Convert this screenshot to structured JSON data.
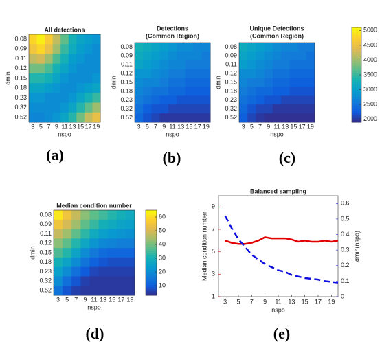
{
  "chart_data": [
    {
      "type": "heatmap",
      "title": "All detections",
      "caption": "(a)",
      "xlabel": "nspo",
      "ylabel": "dmin",
      "colormap": "parula",
      "x": [
        3,
        5,
        7,
        9,
        11,
        13,
        15,
        17,
        19
      ],
      "y": [
        0.08,
        0.09,
        0.11,
        0.12,
        0.15,
        0.18,
        0.23,
        0.32,
        0.52
      ],
      "clim": [
        1900,
        5100
      ],
      "values": [
        [
          4800,
          5000,
          4700,
          4200,
          3700,
          3300,
          3100,
          3000,
          2900
        ],
        [
          4600,
          4800,
          4500,
          4000,
          3500,
          3200,
          3000,
          2900,
          2800
        ],
        [
          4200,
          4300,
          4000,
          3600,
          3300,
          3000,
          2900,
          2800,
          2800
        ],
        [
          3800,
          3800,
          3600,
          3300,
          3100,
          2900,
          2800,
          2800,
          2800
        ],
        [
          3400,
          3400,
          3300,
          3100,
          2900,
          2800,
          2800,
          2800,
          2900
        ],
        [
          3100,
          3100,
          3000,
          2900,
          2800,
          2800,
          2900,
          3000,
          3100
        ],
        [
          2900,
          2900,
          2800,
          2800,
          2800,
          2900,
          3100,
          3300,
          3500
        ],
        [
          2800,
          2800,
          2800,
          2800,
          2900,
          3100,
          3400,
          3700,
          4000
        ],
        [
          2700,
          2700,
          2800,
          2900,
          3100,
          3400,
          3800,
          4200,
          4500
        ]
      ]
    },
    {
      "type": "heatmap",
      "title": "Detections",
      "subtitle": "(Common Region)",
      "caption": "(b)",
      "xlabel": "nspo",
      "ylabel": "dmin",
      "colormap": "parula",
      "x": [
        3,
        5,
        7,
        9,
        11,
        13,
        15,
        17,
        19
      ],
      "y": [
        0.08,
        0.09,
        0.11,
        0.12,
        0.15,
        0.18,
        0.23,
        0.32,
        0.52
      ],
      "clim": [
        1900,
        5100
      ],
      "values": [
        [
          3300,
          3200,
          3100,
          3000,
          2900,
          2800,
          2800,
          2700,
          2700
        ],
        [
          3200,
          3100,
          3000,
          2900,
          2800,
          2700,
          2700,
          2700,
          2600
        ],
        [
          3100,
          3000,
          2900,
          2800,
          2700,
          2700,
          2600,
          2600,
          2600
        ],
        [
          2900,
          2900,
          2800,
          2700,
          2600,
          2600,
          2500,
          2500,
          2500
        ],
        [
          2800,
          2700,
          2700,
          2600,
          2500,
          2500,
          2400,
          2400,
          2400
        ],
        [
          2700,
          2600,
          2500,
          2500,
          2400,
          2400,
          2300,
          2300,
          2300
        ],
        [
          2600,
          2500,
          2400,
          2300,
          2300,
          2200,
          2200,
          2200,
          2200
        ],
        [
          2500,
          2300,
          2200,
          2200,
          2100,
          2100,
          2100,
          2100,
          2100
        ],
        [
          2400,
          2200,
          2100,
          2000,
          2000,
          2000,
          2000,
          2000,
          2000
        ]
      ]
    },
    {
      "type": "heatmap",
      "title": "Unique Detections",
      "subtitle": "(Common Region)",
      "caption": "(c)",
      "xlabel": "nspo",
      "ylabel": "dmin",
      "colormap": "parula",
      "x": [
        3,
        5,
        7,
        9,
        11,
        13,
        15,
        17,
        19
      ],
      "y": [
        0.08,
        0.09,
        0.11,
        0.12,
        0.15,
        0.18,
        0.23,
        0.32,
        0.52
      ],
      "clim": [
        1900,
        5100
      ],
      "cticks": [
        2000,
        2500,
        3000,
        3500,
        4000,
        4500,
        5000
      ],
      "values": [
        [
          3200,
          3100,
          3000,
          2900,
          2800,
          2700,
          2700,
          2600,
          2600
        ],
        [
          3100,
          3000,
          2900,
          2800,
          2700,
          2600,
          2600,
          2600,
          2500
        ],
        [
          3000,
          2900,
          2800,
          2700,
          2600,
          2600,
          2500,
          2500,
          2500
        ],
        [
          2800,
          2800,
          2700,
          2600,
          2500,
          2500,
          2400,
          2400,
          2400
        ],
        [
          2700,
          2600,
          2600,
          2500,
          2400,
          2400,
          2300,
          2300,
          2300
        ],
        [
          2600,
          2500,
          2400,
          2400,
          2300,
          2300,
          2200,
          2200,
          2200
        ],
        [
          2500,
          2400,
          2300,
          2200,
          2200,
          2100,
          2100,
          2100,
          2100
        ],
        [
          2400,
          2200,
          2100,
          2100,
          2000,
          2000,
          2000,
          2000,
          2000
        ],
        [
          2300,
          2100,
          2000,
          1950,
          1950,
          1950,
          1950,
          1950,
          1950
        ]
      ]
    },
    {
      "type": "heatmap",
      "title": "Median condition number",
      "caption": "(d)",
      "xlabel": "nspo",
      "ylabel": "dmin",
      "colormap": "parula",
      "x": [
        3,
        5,
        7,
        9,
        11,
        13,
        15,
        17,
        19
      ],
      "y": [
        0.08,
        0.09,
        0.11,
        0.12,
        0.15,
        0.18,
        0.23,
        0.32,
        0.52
      ],
      "clim": [
        3,
        65
      ],
      "cticks": [
        10,
        20,
        30,
        40,
        50,
        60
      ],
      "values": [
        [
          62,
          55,
          48,
          42,
          38,
          35,
          32,
          30,
          28
        ],
        [
          55,
          50,
          44,
          38,
          34,
          30,
          28,
          26,
          25
        ],
        [
          48,
          44,
          38,
          33,
          28,
          25,
          23,
          22,
          21
        ],
        [
          42,
          38,
          32,
          27,
          22,
          19,
          18,
          17,
          17
        ],
        [
          36,
          32,
          26,
          20,
          16,
          13,
          12,
          12,
          12
        ],
        [
          30,
          26,
          20,
          15,
          11,
          9,
          8,
          8,
          8
        ],
        [
          25,
          20,
          14,
          10,
          7,
          6,
          6,
          6,
          6
        ],
        [
          20,
          14,
          9,
          6,
          5,
          5,
          5,
          5,
          5
        ],
        [
          15,
          9,
          6,
          5,
          5,
          5,
          5,
          5,
          5
        ]
      ]
    },
    {
      "type": "line",
      "title": "Balanced sampling",
      "caption": "(e)",
      "xlabel": "nspo",
      "ylabel": "Median condition number",
      "y2label": "dmin(nspo)",
      "x": [
        3,
        4,
        5,
        6,
        7,
        8,
        9,
        10,
        11,
        12,
        13,
        14,
        15,
        16,
        17,
        18,
        19,
        20
      ],
      "xlim": [
        2,
        20
      ],
      "xticks": [
        3,
        5,
        7,
        9,
        11,
        13,
        15,
        17,
        19
      ],
      "ylim": [
        1,
        10
      ],
      "yticks": [
        1,
        3,
        5,
        7,
        9
      ],
      "y2lim": [
        0,
        0.65
      ],
      "y2ticks": [
        0,
        0.1,
        0.2,
        0.3,
        0.4,
        0.5,
        0.6
      ],
      "series": [
        {
          "color": "#e00000",
          "style": "solid",
          "values": [
            6.0,
            5.8,
            5.7,
            5.7,
            5.8,
            6.0,
            6.3,
            6.2,
            6.2,
            6.2,
            6.1,
            5.9,
            6.0,
            5.9,
            5.9,
            6.0,
            5.9,
            6.0
          ]
        },
        {
          "color": "#1010e0",
          "style": "dashed",
          "axis": "y2",
          "values": [
            0.52,
            0.44,
            0.37,
            0.32,
            0.27,
            0.24,
            0.21,
            0.19,
            0.17,
            0.16,
            0.14,
            0.13,
            0.12,
            0.115,
            0.11,
            0.1,
            0.095,
            0.09
          ]
        }
      ]
    }
  ]
}
